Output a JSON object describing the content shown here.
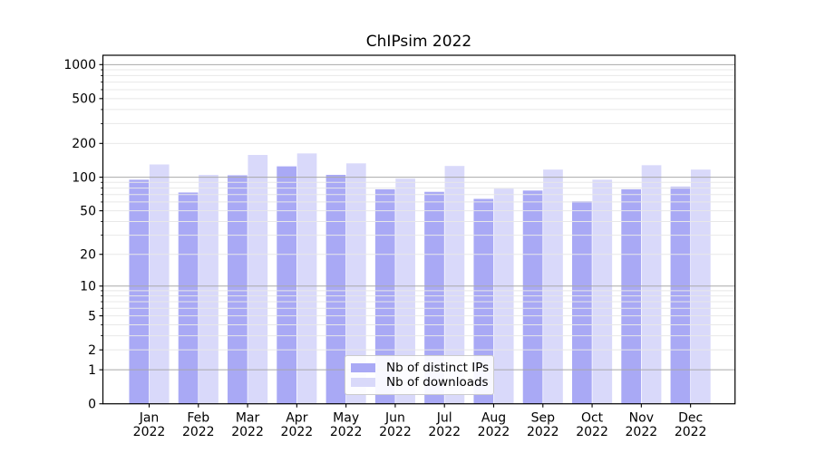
{
  "title": "ChIPsim 2022",
  "chart_data": {
    "type": "bar",
    "title": "ChIPsim 2022",
    "categories": [
      "Jan 2022",
      "Feb 2022",
      "Mar 2022",
      "Apr 2022",
      "May 2022",
      "Jun 2022",
      "Jul 2022",
      "Aug 2022",
      "Sep 2022",
      "Oct 2022",
      "Nov 2022",
      "Dec 2022"
    ],
    "series": [
      {
        "name": "Nb of distinct IPs",
        "color": "#a9a9f5",
        "values": [
          95,
          73,
          104,
          125,
          105,
          78,
          74,
          64,
          76,
          61,
          78,
          82
        ]
      },
      {
        "name": "Nb of downloads",
        "color": "#d9d9fa",
        "values": [
          130,
          105,
          158,
          163,
          133,
          97,
          126,
          79,
          117,
          95,
          128,
          117
        ]
      }
    ],
    "yscale": "log(v+1)",
    "yticks": [
      0,
      1,
      2,
      5,
      10,
      20,
      50,
      100,
      200,
      500,
      1000
    ],
    "ytick_labels": [
      "0",
      "1",
      "2",
      "5",
      "10",
      "20",
      "50",
      "100",
      "200",
      "500",
      "1000"
    ],
    "minor_yticks": [
      3,
      4,
      6,
      7,
      8,
      9,
      30,
      40,
      60,
      70,
      80,
      90,
      300,
      400,
      600,
      700,
      800,
      900
    ],
    "ylim": [
      0,
      1200
    ],
    "xlabel": "",
    "ylabel": "",
    "grid": true,
    "legend_position": "lower center",
    "colors": {
      "grid_decade": "#a9a9a9",
      "grid_light": "#e8e8e8",
      "axis": "#000000",
      "background": "#ffffff"
    }
  }
}
